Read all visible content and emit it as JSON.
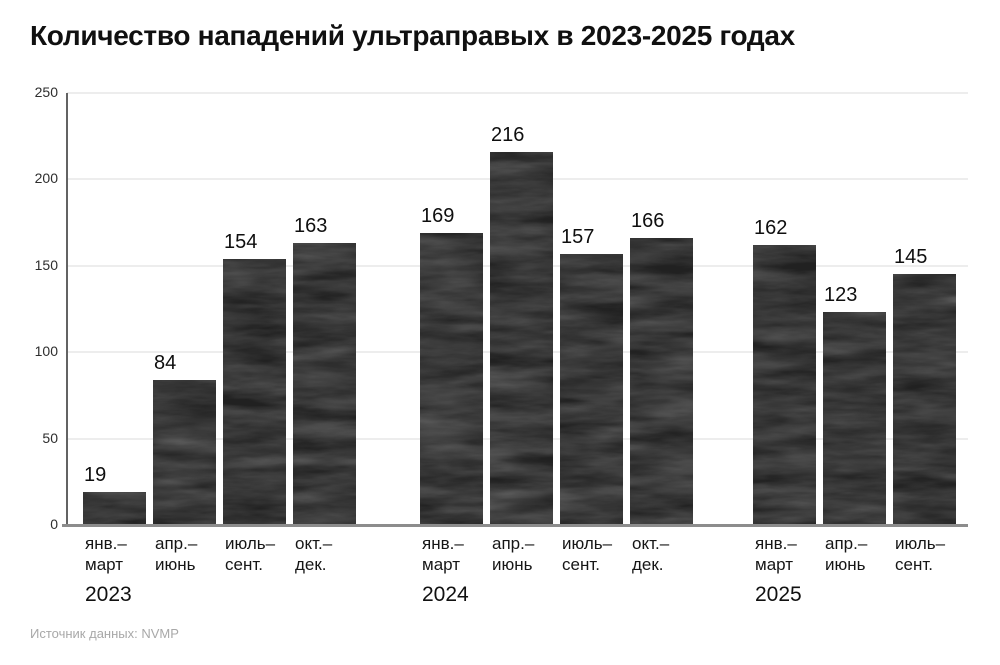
{
  "title": "Количество нападений ультраправых в 2023-2025 годах",
  "footer": {
    "source_label": "Источник данных: NVMP"
  },
  "colors": {
    "bar": "#212121",
    "bar_streak": "#ffffff",
    "grid": "#ededed",
    "y_axis": "#636363",
    "baseline": "#8c8c8c",
    "title_text": "#101010",
    "tick_text": "#2e2e2e",
    "label_text": "#161616",
    "value_text": "#0f0f0f",
    "muted_text": "#a8a8a8",
    "background": "#ffffff"
  },
  "chart_data": {
    "type": "bar",
    "title": "Количество нападений ультраправых в 2023-2025 годах",
    "xlabel": "",
    "ylabel": "",
    "ylim": [
      0,
      250
    ],
    "yticks": [
      0,
      50,
      100,
      150,
      200,
      250
    ],
    "grid": true,
    "legend_position": "none",
    "source": "Источник данных: NVMP",
    "groups": [
      {
        "year": "2023",
        "categories": [
          [
            "янв.–",
            "март"
          ],
          [
            "апр.–",
            "июнь"
          ],
          [
            "июль–",
            "сент."
          ],
          [
            "окт.–",
            "дек."
          ]
        ],
        "values": [
          19,
          84,
          154,
          163
        ]
      },
      {
        "year": "2024",
        "categories": [
          [
            "янв.–",
            "март"
          ],
          [
            "апр.–",
            "июнь"
          ],
          [
            "июль–",
            "сент."
          ],
          [
            "окт.–",
            "дек."
          ]
        ],
        "values": [
          169,
          216,
          157,
          166
        ]
      },
      {
        "year": "2025",
        "categories": [
          [
            "янв.–",
            "март"
          ],
          [
            "апр.–",
            "июнь"
          ],
          [
            "июль–",
            "сент."
          ]
        ],
        "values": [
          162,
          123,
          145
        ]
      }
    ]
  }
}
